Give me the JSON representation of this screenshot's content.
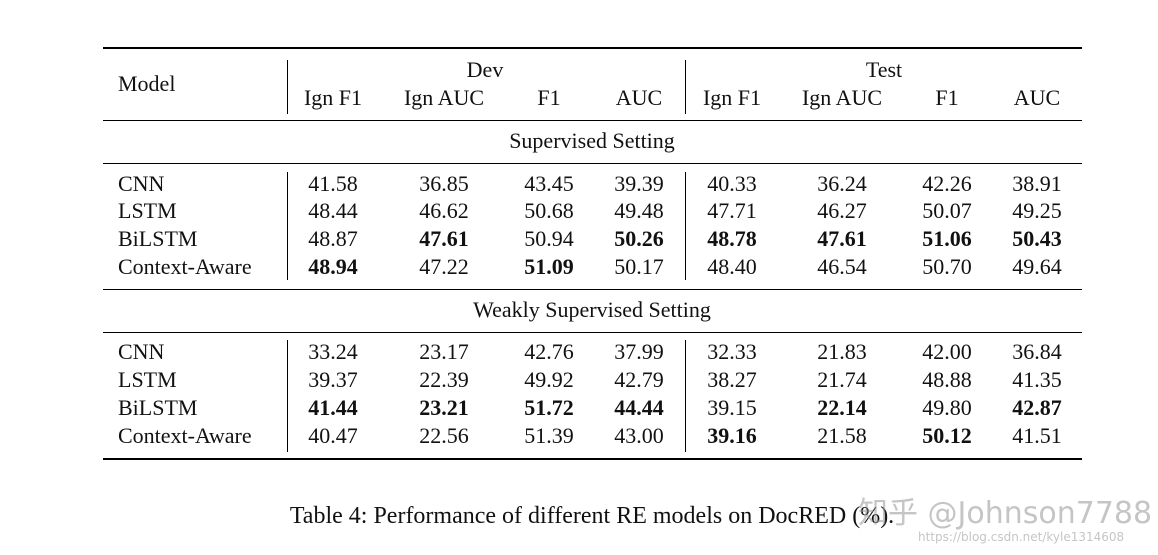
{
  "table": {
    "header": {
      "model": "Model",
      "groups": [
        "Dev",
        "Test"
      ],
      "columns": [
        "Ign F1",
        "Ign AUC",
        "F1",
        "AUC",
        "Ign F1",
        "Ign AUC",
        "F1",
        "AUC"
      ]
    },
    "sections": [
      {
        "title": "Supervised Setting",
        "rows": [
          {
            "model": "CNN",
            "cells": [
              "41.58",
              "36.85",
              "43.45",
              "39.39",
              "40.33",
              "36.24",
              "42.26",
              "38.91"
            ]
          },
          {
            "model": "LSTM",
            "cells": [
              "48.44",
              "46.62",
              "50.68",
              "49.48",
              "47.71",
              "46.27",
              "50.07",
              "49.25"
            ]
          },
          {
            "model": "BiLSTM",
            "cells": [
              "48.87",
              {
                "text": "47.61",
                "bold": true
              },
              "50.94",
              {
                "text": "50.26",
                "bold": true
              },
              {
                "text": "48.78",
                "bold": true
              },
              {
                "text": "47.61",
                "bold": true
              },
              {
                "text": "51.06",
                "bold": true
              },
              {
                "text": "50.43",
                "bold": true
              }
            ]
          },
          {
            "model": "Context-Aware",
            "cells": [
              {
                "text": "48.94",
                "bold": true
              },
              "47.22",
              {
                "text": "51.09",
                "bold": true
              },
              "50.17",
              "48.40",
              "46.54",
              "50.70",
              "49.64"
            ]
          }
        ]
      },
      {
        "title": "Weakly Supervised Setting",
        "rows": [
          {
            "model": "CNN",
            "cells": [
              "33.24",
              "23.17",
              "42.76",
              "37.99",
              "32.33",
              "21.83",
              "42.00",
              "36.84"
            ]
          },
          {
            "model": "LSTM",
            "cells": [
              "39.37",
              "22.39",
              "49.92",
              "42.79",
              "38.27",
              "21.74",
              "48.88",
              "41.35"
            ]
          },
          {
            "model": "BiLSTM",
            "cells": [
              {
                "text": "41.44",
                "bold": true
              },
              {
                "text": "23.21",
                "bold": true
              },
              {
                "text": "51.72",
                "bold": true
              },
              {
                "text": "44.44",
                "bold": true
              },
              "39.15",
              {
                "text": "22.14",
                "bold": true
              },
              "49.80",
              {
                "text": "42.87",
                "bold": true
              }
            ]
          },
          {
            "model": "Context-Aware",
            "cells": [
              "40.47",
              "22.56",
              "51.39",
              "43.00",
              {
                "text": "39.16",
                "bold": true
              },
              "21.58",
              {
                "text": "50.12",
                "bold": true
              },
              "41.51"
            ]
          }
        ]
      }
    ]
  },
  "caption": "Table 4: Performance of different RE models on DocRED (%).",
  "watermark": [
    "知乎 @Johnson7788",
    "https://blog.csdn.net/kyle1314608"
  ]
}
